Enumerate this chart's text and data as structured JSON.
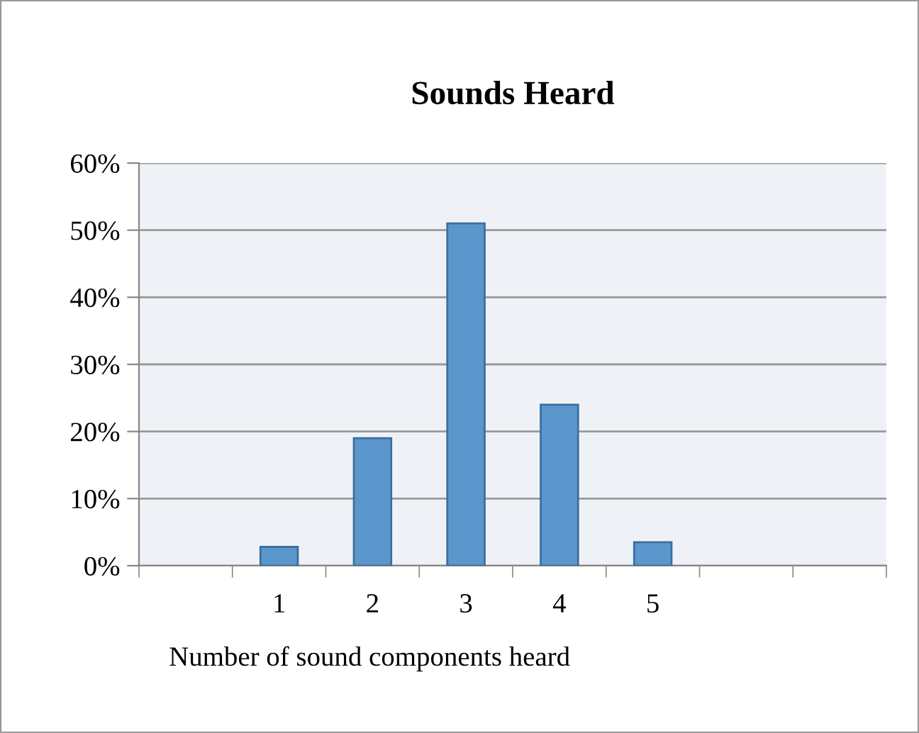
{
  "chart_data": {
    "type": "bar",
    "title": "Sounds Heard",
    "xlabel": "Number of sound components heard",
    "categories": [
      null,
      "1",
      "2",
      "3",
      "4",
      "5",
      null,
      null
    ],
    "values": [
      null,
      2.8,
      19,
      51,
      24,
      3.5,
      null,
      null
    ],
    "color": "#5b96cc",
    "ylim": [
      0,
      60
    ],
    "yticks": [
      {
        "value": 0,
        "label": "0%"
      },
      {
        "value": 10,
        "label": "10%"
      },
      {
        "value": 20,
        "label": "20%"
      },
      {
        "value": 30,
        "label": "30%"
      },
      {
        "value": 40,
        "label": "40%"
      },
      {
        "value": 50,
        "label": "50%"
      },
      {
        "value": 60,
        "label": "60%"
      }
    ],
    "grid": "y",
    "legend": false
  }
}
